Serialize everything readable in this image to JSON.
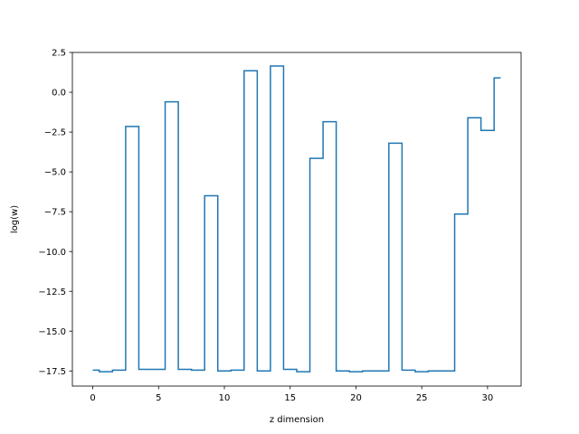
{
  "chart_data": {
    "type": "line",
    "drawstyle": "steps-mid",
    "xlabel": "z dimension",
    "ylabel": "log(w)",
    "xlim": [
      -1.55,
      32.55
    ],
    "ylim": [
      -18.45,
      2.5
    ],
    "xticks": [
      0,
      5,
      10,
      15,
      20,
      25,
      30
    ],
    "xtick_labels": [
      "0",
      "5",
      "10",
      "15",
      "20",
      "25",
      "30"
    ],
    "yticks": [
      2.5,
      0.0,
      -2.5,
      -5.0,
      -7.5,
      -10.0,
      -12.5,
      -15.0,
      -17.5
    ],
    "ytick_labels": [
      "2.5",
      "0.0",
      "−2.5",
      "−5.0",
      "−7.5",
      "−10.0",
      "−12.5",
      "−15.0",
      "−17.5"
    ],
    "grid": false,
    "series": [
      {
        "color": "#1f77b4",
        "x": [
          0,
          1,
          2,
          3,
          4,
          5,
          6,
          7,
          8,
          9,
          10,
          11,
          12,
          13,
          14,
          15,
          16,
          17,
          18,
          19,
          20,
          21,
          22,
          23,
          24,
          25,
          26,
          27,
          28,
          29,
          30,
          31
        ],
        "y": [
          -17.45,
          -17.55,
          -17.45,
          -2.15,
          -17.4,
          -17.4,
          -0.6,
          -17.4,
          -17.45,
          -6.5,
          -17.5,
          -17.45,
          1.35,
          -17.5,
          1.65,
          -17.4,
          -17.55,
          -4.15,
          -1.85,
          -17.5,
          -17.55,
          -17.5,
          -17.5,
          -3.2,
          -17.45,
          -17.55,
          -17.5,
          -17.5,
          -7.65,
          -1.6,
          -2.4,
          0.9
        ]
      }
    ]
  }
}
